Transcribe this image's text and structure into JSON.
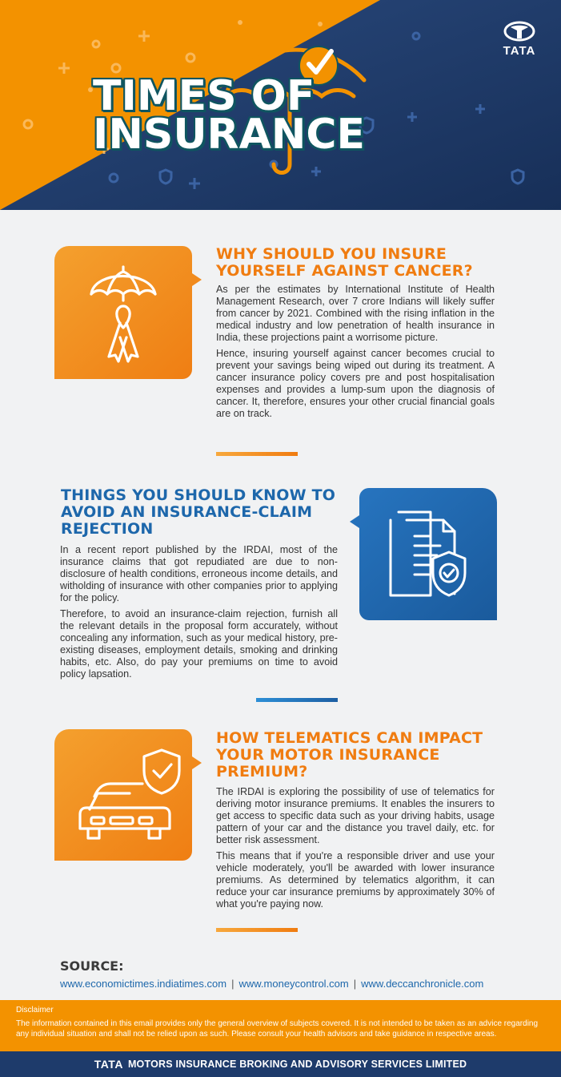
{
  "header": {
    "brand": "TATA",
    "title_line1": "TIMES OF",
    "title_line2": "INSURANCE",
    "colors": {
      "orange": "#f39200",
      "navy": "#1e3b6b",
      "teal_outline": "#0f5560"
    }
  },
  "sections": [
    {
      "title_line1": "WHY SHOULD YOU INSURE",
      "title_line2": "YOURSELF AGAINST CANCER?",
      "icon": "umbrella-ribbon-icon",
      "paragraphs": [
        "As per the estimates by International Institute of Health Management Research, over 7 crore Indians will likely suffer from cancer by 2021. Combined with the rising inflation in the medical industry and low penetration of health insurance in India, these projections paint a worrisome picture.",
        "Hence, insuring yourself against cancer becomes crucial to prevent your savings being wiped out during its treatment. A cancer insurance policy covers pre and post hospitalisation expenses and provides a lump-sum upon the diagnosis of cancer. It, therefore, ensures your other crucial financial goals are on track."
      ]
    },
    {
      "title_line1": "THINGS YOU SHOULD KNOW TO",
      "title_line2": "AVOID AN INSURANCE-CLAIM",
      "title_line3": "REJECTION",
      "icon": "document-shield-icon",
      "paragraphs": [
        "In a recent report published by the IRDAI, most of the insurance claims that got repudiated are due to non-disclosure of health conditions, erroneous income details, and witholding of insurance with other companies prior to applying for the policy.",
        "Therefore, to avoid an insurance-claim rejection, furnish all the relevant details in the proposal form accurately, without concealing any information, such as your medical history, pre-existing diseases, employment details, smoking and drinking habits, etc. Also, do pay your premiums on time to avoid policy lapsation."
      ]
    },
    {
      "title_line1": "HOW TELEMATICS CAN IMPACT",
      "title_line2": "YOUR MOTOR INSURANCE",
      "title_line3": "PREMIUM?",
      "icon": "car-shield-icon",
      "paragraphs": [
        "The IRDAI is exploring the possibility of use of telematics for deriving motor insurance premiums. It enables the insurers to get access to specific data such as your driving habits, usage pattern of your car and the distance you travel daily, etc. for better risk assessment.",
        "This means that if you're a responsible driver and use your vehicle moderately, you'll be awarded with lower insurance premiums. As determined by telematics algorithm, it can reduce your car insurance premiums by approximately 30% of what you're paying now."
      ]
    }
  ],
  "source": {
    "label": "SOURCE:",
    "links": [
      "www.economictimes.indiatimes.com",
      "www.moneycontrol.com",
      "www.deccanchronicle.com"
    ],
    "separator": "|"
  },
  "disclaimer": {
    "title": "Disclaimer",
    "text": "The information contained in this email provides only the general overview of subjects covered. It is not intended to be taken as an advice regarding any individual situation and shall not be relied upon as such. Please consult your health advisors and take guidance in respective areas."
  },
  "footer": {
    "brand": "TATA",
    "company": "MOTORS INSURANCE BROKING AND ADVISORY SERVICES LIMITED"
  }
}
